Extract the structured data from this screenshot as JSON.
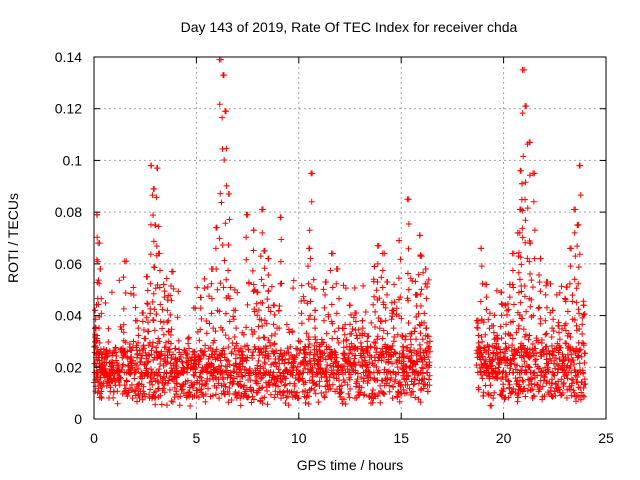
{
  "chart_data": {
    "type": "scatter",
    "title": "Day 143 of 2019, Rate Of TEC Index for receiver chda",
    "xlabel": "GPS time / hours",
    "ylabel": "ROTI / TECUs",
    "xlim": [
      0,
      25
    ],
    "ylim": [
      0,
      0.14
    ],
    "x_ticks": [
      0,
      5,
      10,
      15,
      20,
      25
    ],
    "x_tick_labels": [
      "0",
      "5",
      "10",
      "15",
      "20",
      "25"
    ],
    "y_ticks": [
      0,
      0.02,
      0.04,
      0.06,
      0.08,
      0.1,
      0.12,
      0.14
    ],
    "y_tick_labels": [
      "0",
      "0.02",
      "0.04",
      "0.06",
      "0.08",
      "0.1",
      "0.12",
      "0.14"
    ],
    "grid": true,
    "marker": "+",
    "series": [
      {
        "name": "ROTI",
        "color": "#ff0000",
        "coverage_hours": [
          [
            0,
            16.4
          ],
          [
            18.7,
            24
          ]
        ],
        "x": [
          0.05,
          0.1,
          0.15,
          0.2,
          0.25,
          0.3,
          0.4,
          0.5,
          0.7,
          0.9,
          1.2,
          1.5,
          1.8,
          2.1,
          2.4,
          2.6,
          2.8,
          2.9,
          3.0,
          3.1,
          3.2,
          3.4,
          3.6,
          3.8,
          4.0,
          4.3,
          4.6,
          4.9,
          5.2,
          5.5,
          5.8,
          6.0,
          6.2,
          6.3,
          6.4,
          6.6,
          6.9,
          7.2,
          7.5,
          7.8,
          8.0,
          8.2,
          8.3,
          8.5,
          8.8,
          9.1,
          9.4,
          9.7,
          10.0,
          10.3,
          10.5,
          10.6,
          10.8,
          11.0,
          11.3,
          11.6,
          11.9,
          12.2,
          12.5,
          12.8,
          13.1,
          13.4,
          13.7,
          13.9,
          14.1,
          14.3,
          14.6,
          14.9,
          15.1,
          15.3,
          15.5,
          15.7,
          15.9,
          16.0,
          16.2,
          16.35,
          18.75,
          18.9,
          19.1,
          19.3,
          19.5,
          19.7,
          19.9,
          20.1,
          20.3,
          20.5,
          20.7,
          20.8,
          20.85,
          20.9,
          21.0,
          21.1,
          21.25,
          21.3,
          21.5,
          21.8,
          22.1,
          22.4,
          22.7,
          22.9,
          23.1,
          23.3,
          23.5,
          23.6,
          23.7,
          23.9
        ],
        "y": [
          0.042,
          0.035,
          0.079,
          0.068,
          0.026,
          0.058,
          0.021,
          0.017,
          0.014,
          0.022,
          0.019,
          0.061,
          0.024,
          0.038,
          0.041,
          0.055,
          0.098,
          0.089,
          0.075,
          0.097,
          0.064,
          0.052,
          0.046,
          0.057,
          0.023,
          0.018,
          0.031,
          0.026,
          0.047,
          0.021,
          0.058,
          0.074,
          0.139,
          0.133,
          0.119,
          0.087,
          0.042,
          0.026,
          0.079,
          0.073,
          0.049,
          0.081,
          0.065,
          0.062,
          0.044,
          0.078,
          0.019,
          0.024,
          0.017,
          0.028,
          0.066,
          0.095,
          0.042,
          0.028,
          0.053,
          0.064,
          0.058,
          0.035,
          0.044,
          0.041,
          0.038,
          0.032,
          0.059,
          0.067,
          0.064,
          0.053,
          0.042,
          0.069,
          0.028,
          0.085,
          0.033,
          0.048,
          0.071,
          0.063,
          0.058,
          0.032,
          0.038,
          0.066,
          0.052,
          0.028,
          0.036,
          0.031,
          0.049,
          0.044,
          0.052,
          0.064,
          0.072,
          0.081,
          0.096,
          0.091,
          0.135,
          0.121,
          0.107,
          0.068,
          0.095,
          0.062,
          0.053,
          0.042,
          0.036,
          0.024,
          0.051,
          0.066,
          0.081,
          0.075,
          0.098,
          0.044
        ],
        "noise_floor_range": [
          0.005,
          0.035
        ],
        "typical_baseline": 0.018
      }
    ]
  }
}
